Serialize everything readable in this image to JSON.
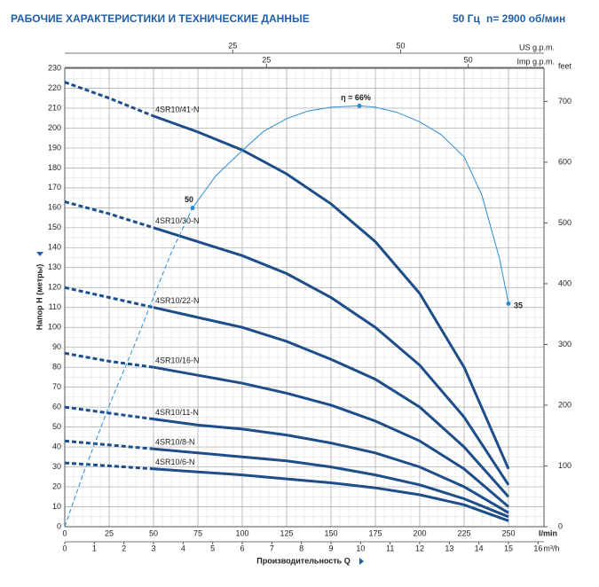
{
  "chart_data": {
    "type": "line",
    "title": "РАБОЧИЕ ХАРАКТЕРИСТИКИ И ТЕХНИЧЕСКИЕ ДАННЫЕ",
    "frequency": "50 Гц",
    "speed": "n= 2900 об/мин",
    "x_label": "Производительность Q",
    "x_unit": "l/min",
    "y_label": "Напор H (метры)",
    "y2_label": "feet",
    "x": [
      0,
      25,
      50,
      75,
      100,
      125,
      150,
      175,
      200,
      225,
      250
    ],
    "xlim": [
      0,
      270
    ],
    "xticks": [
      0,
      25,
      50,
      75,
      100,
      125,
      150,
      175,
      200,
      225,
      250
    ],
    "ylim": [
      0,
      230
    ],
    "yticks": [
      0,
      10,
      20,
      30,
      40,
      50,
      60,
      70,
      80,
      90,
      100,
      110,
      120,
      130,
      140,
      150,
      160,
      170,
      180,
      190,
      200,
      210,
      220,
      230
    ],
    "y2lim": [
      0,
      754.6
    ],
    "y2ticks": [
      0,
      100,
      200,
      300,
      400,
      500,
      600,
      700
    ],
    "grid": {
      "x_minor_step": 5,
      "y_minor_step": 5
    },
    "series": [
      {
        "name": "4SR10/41-N",
        "color": "#1d4e89",
        "dashed_to_x": 50,
        "values": [
          223,
          215,
          206,
          198,
          189,
          177,
          162,
          143,
          117,
          80,
          29
        ]
      },
      {
        "name": "4SR10/30-N",
        "color": "#1d4e89",
        "dashed_to_x": 50,
        "values": [
          163,
          157,
          150,
          143,
          136,
          127,
          115,
          100,
          81,
          55,
          21
        ]
      },
      {
        "name": "4SR10/22-N",
        "color": "#1d4e89",
        "dashed_to_x": 50,
        "values": [
          120,
          115,
          110,
          105,
          100,
          93,
          84,
          74,
          60,
          40,
          15
        ]
      },
      {
        "name": "4SR10/16-N",
        "color": "#1d4e89",
        "dashed_to_x": 50,
        "values": [
          87,
          83,
          80,
          76,
          72,
          67,
          61,
          53,
          43,
          29,
          10
        ]
      },
      {
        "name": "4SR10/11-N",
        "color": "#1d4e89",
        "dashed_to_x": 50,
        "values": [
          60,
          57,
          54,
          51,
          49,
          46,
          42,
          37,
          30,
          20,
          7
        ]
      },
      {
        "name": "4SR10/8-N",
        "color": "#1d4e89",
        "dashed_to_x": 50,
        "values": [
          43,
          41,
          39,
          37,
          35,
          33,
          30,
          26,
          21,
          14,
          5
        ]
      },
      {
        "name": "4SR10/6-N",
        "color": "#1d4e89",
        "dashed_to_x": 50,
        "values": [
          32,
          30.5,
          29,
          27.5,
          26,
          24,
          22,
          19.5,
          16,
          11,
          3
        ]
      }
    ],
    "efficiency": {
      "color": "#2a8fd0",
      "dashed_to_x": 72,
      "ylim": [
        0,
        71.9
      ],
      "x": [
        0,
        10,
        25,
        40,
        50,
        60,
        72,
        85,
        100,
        112,
        125,
        137,
        150,
        166,
        175,
        187,
        200,
        212,
        225,
        235,
        240,
        245,
        250
      ],
      "values": [
        0,
        8,
        19,
        29,
        36,
        43,
        50,
        55,
        59,
        62,
        64,
        65.2,
        65.8,
        66,
        65.8,
        65,
        63.5,
        61.5,
        58,
        52,
        47,
        42,
        35
      ],
      "value_labels": [
        null,
        null,
        null,
        null,
        null,
        null,
        "50",
        null,
        null,
        null,
        null,
        null,
        null,
        "η = 66%",
        null,
        null,
        null,
        null,
        null,
        null,
        null,
        null,
        "35"
      ]
    },
    "top_axes": [
      {
        "label": "US g.p.m.",
        "lim": [
          0,
          71.33
        ],
        "ticks": [
          25,
          50
        ]
      },
      {
        "label": "Imp g.p.m.",
        "lim": [
          0,
          59.39
        ],
        "ticks": [
          25,
          50
        ]
      }
    ],
    "bottom_axis": {
      "label": "m³/h",
      "lim": [
        0,
        16.2
      ],
      "ticks": [
        0,
        1,
        2,
        3,
        4,
        5,
        6,
        7,
        8,
        9,
        10,
        11,
        12,
        13,
        14,
        15,
        16
      ]
    }
  }
}
